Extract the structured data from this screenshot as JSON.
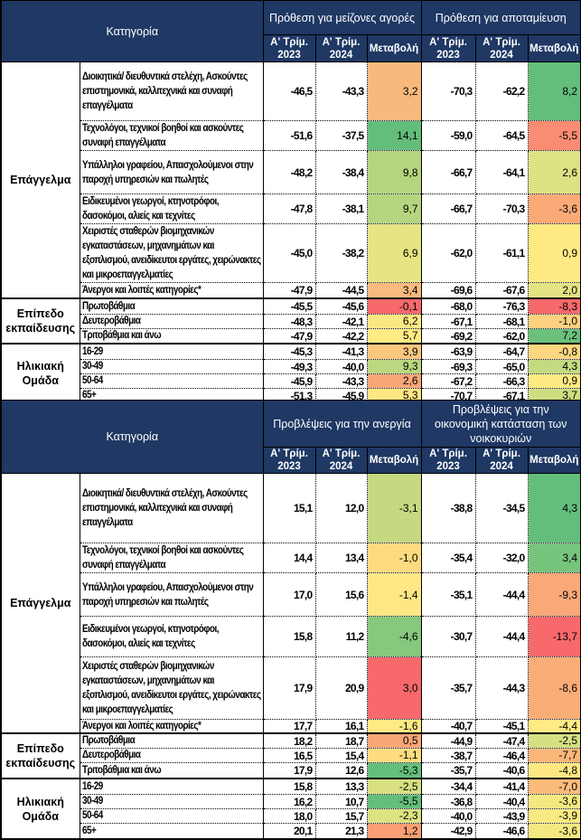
{
  "colors": {
    "header_bg": "#1f3864",
    "header_text": "#ffffff"
  },
  "tables": [
    {
      "category_header": "Κατηγορία",
      "group_headers": [
        "Πρόθεση για μείζονες αγορές",
        "Πρόθεση για αποταμίευση"
      ],
      "sub_headers": {
        "q2023": "Α' Τρίμ. 2023",
        "q2024": "Α' Τρίμ. 2024",
        "change": "Μεταβολή"
      },
      "groups": [
        {
          "name": "Επάγγελμα",
          "rows": [
            {
              "label": "Διοικητικά/ διευθυντικά στελέχη, Ασκούντες επιστημονικά, καλλιτεχνικά και  συναφή επαγγέλματα",
              "a1": "-46,5",
              "a2": "-43,3",
              "ac": "3,2",
              "acol": "#f8b97c",
              "b1": "-70,3",
              "b2": "-62,2",
              "bc": "8,2",
              "bcol": "#63be7b"
            },
            {
              "label": "Τεχνολόγοι, τεχνικοί βοηθοί και ασκούντες συναφή επαγγέλματα",
              "a1": "-51,6",
              "a2": "-37,5",
              "ac": "14,1",
              "acol": "#63be7b",
              "b1": "-59,0",
              "b2": "-64,5",
              "bc": "-5,5",
              "bcol": "#f98c72"
            },
            {
              "label": "Υπάλληλοι γραφείου, Απασχολούμενοι στην παροχή υπηρεσιών και πωλητές",
              "a1": "-48,2",
              "a2": "-38,4",
              "ac": "9,8",
              "acol": "#b4d57e",
              "b1": "-66,7",
              "b2": "-64,1",
              "bc": "2,6",
              "bcol": "#dde283"
            },
            {
              "label": "Ειδικευμένοι γεωργοί, κτηνοτρόφοι, δασοκόμοι, αλιείς και τεχνίτες",
              "a1": "-47,8",
              "a2": "-38,1",
              "ac": "9,7",
              "acol": "#b5d57f",
              "b1": "-66,7",
              "b2": "-70,3",
              "bc": "-3,6",
              "bcol": "#fba977"
            },
            {
              "label": "Χειριστές σταθερών βιομηχανικών εγκαταστάσεων, μηχανημάτων και εξοπλισμού, ανειδίκευτοι εργάτες, χειρώνακτες και μικροεπαγγελματίες",
              "a1": "-45,0",
              "a2": "-38,2",
              "ac": "6,9",
              "acol": "#e6e483",
              "b1": "-62,0",
              "b2": "-61,1",
              "bc": "0,9",
              "bcol": "#fee983"
            },
            {
              "label": "Άνεργοι και λοιπές κατηγορίες*",
              "a1": "-47,9",
              "a2": "-44,5",
              "ac": "3,4",
              "acol": "#f9ba7d",
              "b1": "-69,6",
              "b2": "-67,6",
              "bc": "2,0",
              "bcol": "#e4e383"
            }
          ]
        },
        {
          "name": "Επίπεδο εκπαίδευσης",
          "rows": [
            {
              "label": "Πρωτοβάθμια",
              "a1": "-45,5",
              "a2": "-45,6",
              "ac": "-0,1",
              "acol": "#f8696b",
              "b1": "-68,0",
              "b2": "-76,3",
              "bc": "-8,3",
              "bcol": "#f8696b"
            },
            {
              "label": "Δευτεροβάθμια",
              "a1": "-48,3",
              "a2": "-42,1",
              "ac": "6,2",
              "acol": "#fce882",
              "b1": "-67,1",
              "b2": "-68,1",
              "bc": "-1,0",
              "bcol": "#fdd17f"
            },
            {
              "label": "Τριτοβάθμια και άνω",
              "a1": "-47,9",
              "a2": "-42,2",
              "ac": "5,7",
              "acol": "#ffeb84",
              "b1": "-69,2",
              "b2": "-62,0",
              "bc": "7,2",
              "bcol": "#6bc17c"
            }
          ]
        },
        {
          "name": "Ηλικιακή Ομάδα",
          "rows": [
            {
              "label": "16-29",
              "a1": "-45,3",
              "a2": "-41,3",
              "ac": "3,9",
              "acol": "#fbc67e",
              "b1": "-63,9",
              "b2": "-64,7",
              "bc": "-0,8",
              "bcol": "#fdd680"
            },
            {
              "label": "30-49",
              "a1": "-49,3",
              "a2": "-40,0",
              "ac": "9,3",
              "acol": "#bcd880",
              "b1": "-69,3",
              "b2": "-65,0",
              "bc": "4,3",
              "bcol": "#c3da80"
            },
            {
              "label": "50-64",
              "a1": "-45,9",
              "a2": "-43,3",
              "ac": "2,6",
              "acol": "#f9a677",
              "b1": "-67,2",
              "b2": "-66,3",
              "bc": "0,9",
              "bcol": "#ffeb84"
            },
            {
              "label": "65+",
              "a1": "-51,3",
              "a2": "-45,9",
              "ac": "5,3",
              "acol": "#ffe783",
              "b1": "-70,7",
              "b2": "-67,1",
              "bc": "3,7",
              "bcol": "#cddd81"
            }
          ]
        }
      ]
    },
    {
      "category_header": "Κατηγορία",
      "group_headers": [
        "Προβλέψεις για την ανεργία",
        "Προβλέψεις για την οικονομική κατάσταση των νοικοκυριών"
      ],
      "sub_headers": {
        "q2023": "Α' Τρίμ. 2023",
        "q2024": "Α' Τρίμ. 2024",
        "change": "Μεταβολή"
      },
      "groups": [
        {
          "name": "Επάγγελμα",
          "rows": [
            {
              "label": "Διοικητικά/ διευθυντικά στελέχη, Ασκούντες επιστημονικά, καλλιτεχνικά και  συναφή επαγγέλματα",
              "a1": "15,1",
              "a2": "12,0",
              "ac": "-3,1",
              "acol": "#c4d980",
              "b1": "-38,8",
              "b2": "-34,5",
              "bc": "4,3",
              "bcol": "#63be7b"
            },
            {
              "label": "Τεχνολόγοι, τεχνικοί βοηθοί και ασκούντες συναφή επαγγέλματα",
              "a1": "14,4",
              "a2": "13,4",
              "ac": "-1,0",
              "acol": "#fedb81",
              "b1": "-35,4",
              "b2": "-32,0",
              "bc": "3,4",
              "bcol": "#77c47d"
            },
            {
              "label": "Υπάλληλοι γραφείου, Απασχολούμενοι στην παροχή υπηρεσιών και πωλητές",
              "a1": "17,0",
              "a2": "15,6",
              "ac": "-1,4",
              "acol": "#ffe784",
              "b1": "-35,1",
              "b2": "-44,4",
              "bc": "-9,3",
              "bcol": "#faa877"
            },
            {
              "label": "Ειδικευμένοι γεωργοί, κτηνοτρόφοι, δασοκόμοι, αλιείς και τεχνίτες",
              "a1": "15,8",
              "a2": "11,2",
              "ac": "-4,6",
              "acol": "#86c87d",
              "b1": "-30,7",
              "b2": "-44,4",
              "bc": "-13,7",
              "bcol": "#f8696b"
            },
            {
              "label": "Χειριστές σταθερών βιομηχανικών εγκαταστάσεων, μηχανημάτων και εξοπλισμού, ανειδίκευτοι εργάτες, χειρώνακτες και μικροεπαγγελματίες",
              "a1": "17,9",
              "a2": "20,9",
              "ac": "3,0",
              "acol": "#f8696b",
              "b1": "-35,7",
              "b2": "-44,3",
              "bc": "-8,6",
              "bcol": "#fbad78"
            },
            {
              "label": "Άνεργοι και λοιπές κατηγορίες*",
              "a1": "17,7",
              "a2": "16,1",
              "ac": "-1,6",
              "acol": "#ffea84",
              "b1": "-40,7",
              "b2": "-45,1",
              "bc": "-4,4",
              "bcol": "#ffea84"
            }
          ]
        },
        {
          "name": "Επίπεδο εκπαίδευσης",
          "rows": [
            {
              "label": "Πρωτοβάθμια",
              "a1": "18,2",
              "a2": "18,7",
              "ac": "0,5",
              "acol": "#f9a677",
              "b1": "-44,9",
              "b2": "-47,4",
              "bc": "-2,5",
              "bcol": "#d6df82"
            },
            {
              "label": "Δευτεροβάθμια",
              "a1": "16,5",
              "a2": "15,4",
              "ac": "-1,1",
              "acol": "#fedd81",
              "b1": "-38,7",
              "b2": "-46,4",
              "bc": "-7,7",
              "bcol": "#fbb77a"
            },
            {
              "label": "Τριτοβάθμια και άνω",
              "a1": "17,9",
              "a2": "12,6",
              "ac": "-5,3",
              "acol": "#65bf7c",
              "b1": "-35,7",
              "b2": "-40,6",
              "bc": "-4,8",
              "bcol": "#ffe884"
            }
          ]
        },
        {
          "name": "Ηλικιακή Ομάδα",
          "rows": [
            {
              "label": "16-29",
              "a1": "15,8",
              "a2": "13,3",
              "ac": "-2,5",
              "acol": "#d8e082",
              "b1": "-34,4",
              "b2": "-41,4",
              "bc": "-7,0",
              "bcol": "#fbbb7b"
            },
            {
              "label": "30-49",
              "a1": "16,2",
              "a2": "10,7",
              "ac": "-5,5",
              "acol": "#63be7b",
              "b1": "-36,8",
              "b2": "-40,4",
              "bc": "-3,6",
              "bcol": "#f4e883"
            },
            {
              "label": "50-64",
              "a1": "18,0",
              "a2": "15,7",
              "ac": "-2,3",
              "acol": "#dde283",
              "b1": "-40,0",
              "b2": "-43,9",
              "bc": "-3,9",
              "bcol": "#f9e983"
            },
            {
              "label": "65+",
              "a1": "20,1",
              "a2": "21,3",
              "ac": "1,2",
              "acol": "#fa9e75",
              "b1": "-42,9",
              "b2": "-46,6",
              "bc": "-3,6",
              "bcol": "#f4e883"
            }
          ]
        }
      ]
    }
  ]
}
